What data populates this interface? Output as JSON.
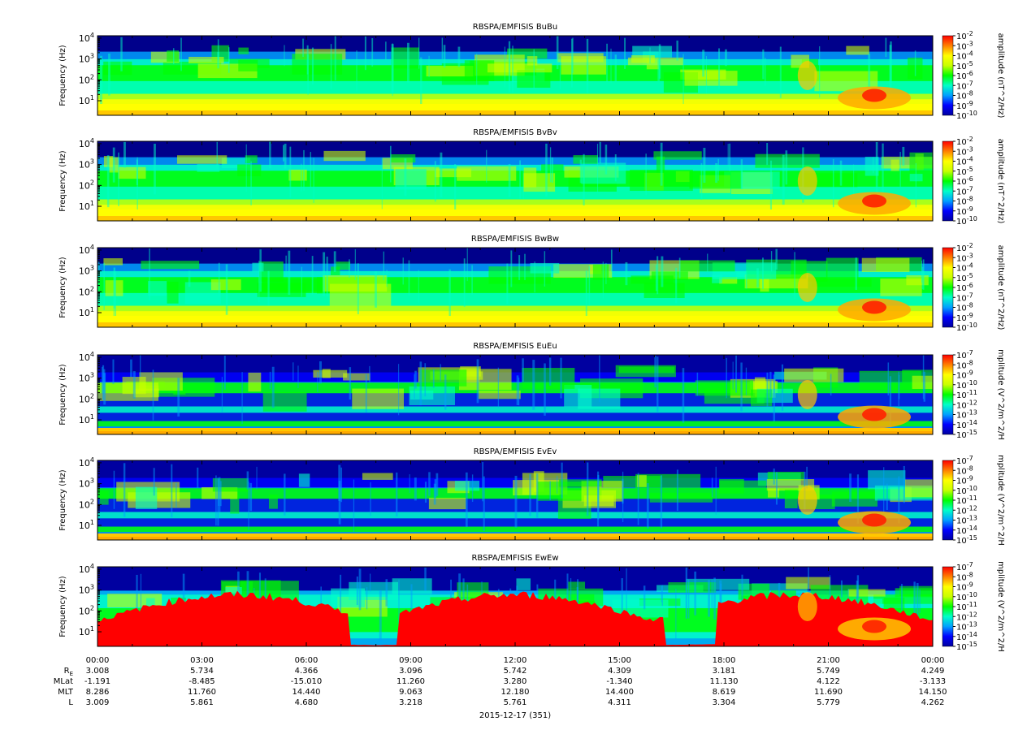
{
  "chart_data": {
    "type": "heatmap",
    "xaxis": {
      "ticks": [
        "00:00",
        "03:00",
        "06:00",
        "09:00",
        "12:00",
        "15:00",
        "18:00",
        "21:00",
        "00:00"
      ],
      "date_label": "2015-12-17 (351)"
    },
    "ephemeris": [
      {
        "label": "R",
        "subscript": "E",
        "values": [
          "3.008",
          "5.734",
          "4.366",
          "3.096",
          "5.742",
          "4.309",
          "3.181",
          "5.749",
          "4.249"
        ]
      },
      {
        "label": "MLat",
        "subscript": "",
        "values": [
          "-1.191",
          "-8.485",
          "-15.010",
          "11.260",
          "3.280",
          "-1.340",
          "11.130",
          "4.122",
          "-3.133"
        ]
      },
      {
        "label": "MLT",
        "subscript": "",
        "values": [
          "8.286",
          "11.760",
          "14.440",
          "9.063",
          "12.180",
          "14.400",
          "8.619",
          "11.690",
          "14.150"
        ]
      },
      {
        "label": "L",
        "subscript": "",
        "values": [
          "3.009",
          "5.861",
          "4.680",
          "3.218",
          "5.761",
          "4.311",
          "3.304",
          "5.779",
          "4.262"
        ]
      }
    ],
    "panels": [
      {
        "title": "RBSPA/EMFISIS  BuBu",
        "ylabel": "Frequency (Hz)",
        "ylim": [
          2,
          13000
        ],
        "colorbar_label": "amplitude (nT^2/Hz)",
        "color_range": [
          "10^-10",
          "10^-2"
        ],
        "colorbar_ticks": [
          "-2",
          "-3",
          "-4",
          "-5",
          "-6",
          "-7",
          "-8",
          "-9",
          "-10"
        ]
      },
      {
        "title": "RBSPA/EMFISIS  BvBv",
        "ylabel": "Frequency (Hz)",
        "ylim": [
          2,
          13000
        ],
        "colorbar_label": "amplitude (nT^2/Hz)",
        "color_range": [
          "10^-10",
          "10^-2"
        ],
        "colorbar_ticks": [
          "-2",
          "-3",
          "-4",
          "-5",
          "-6",
          "-7",
          "-8",
          "-9",
          "-10"
        ]
      },
      {
        "title": "RBSPA/EMFISIS  BwBw",
        "ylabel": "Frequency (Hz)",
        "ylim": [
          2,
          13000
        ],
        "colorbar_label": "amplitude (nT^2/Hz)",
        "color_range": [
          "10^-10",
          "10^-2"
        ],
        "colorbar_ticks": [
          "-2",
          "-3",
          "-4",
          "-5",
          "-6",
          "-7",
          "-8",
          "-9",
          "-10"
        ]
      },
      {
        "title": "RBSPA/EMFISIS  EuEu",
        "ylabel": "Frequency (Hz)",
        "ylim": [
          2,
          13000
        ],
        "colorbar_label": "mplitude (V^2/m^2/H",
        "color_range": [
          "10^-15",
          "10^-7"
        ],
        "colorbar_ticks": [
          "-7",
          "-8",
          "-9",
          "-10",
          "-11",
          "-12",
          "-13",
          "-14",
          "-15"
        ]
      },
      {
        "title": "RBSPA/EMFISIS  EvEv",
        "ylabel": "Frequency (Hz)",
        "ylim": [
          2,
          13000
        ],
        "colorbar_label": "mplitude (V^2/m^2/H",
        "color_range": [
          "10^-15",
          "10^-7"
        ],
        "colorbar_ticks": [
          "-7",
          "-8",
          "-9",
          "-10",
          "-11",
          "-12",
          "-13",
          "-14",
          "-15"
        ]
      },
      {
        "title": "RBSPA/EMFISIS  EwEw",
        "ylabel": "Frequency (Hz)",
        "ylim": [
          2,
          13000
        ],
        "colorbar_label": "mplitude (V^2/m^2/H",
        "color_range": [
          "10^-15",
          "10^-7"
        ],
        "colorbar_ticks": [
          "-7",
          "-8",
          "-9",
          "-10",
          "-11",
          "-12",
          "-13",
          "-14",
          "-15"
        ]
      }
    ],
    "yticks": [
      "10",
      "10",
      "10",
      "10"
    ],
    "ytick_exponents": [
      "4",
      "3",
      "2",
      "1"
    ],
    "colormap": [
      "#0000a0",
      "#0000ff",
      "#00a0ff",
      "#00ffc8",
      "#00ff00",
      "#c8ff00",
      "#ffff00",
      "#ff8000",
      "#ff0000"
    ]
  }
}
